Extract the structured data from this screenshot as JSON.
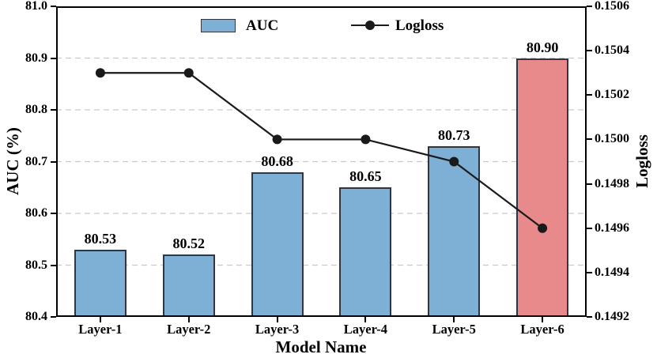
{
  "chart_data": {
    "type": "bar+line",
    "categories": [
      "Layer-1",
      "Layer-2",
      "Layer-3",
      "Layer-4",
      "Layer-5",
      "Layer-6"
    ],
    "series": [
      {
        "name": "AUC",
        "type": "bar",
        "axis": "left",
        "values": [
          80.53,
          80.52,
          80.68,
          80.65,
          80.73,
          80.9
        ],
        "labels": [
          "80.53",
          "80.52",
          "80.68",
          "80.65",
          "80.73",
          "80.90"
        ]
      },
      {
        "name": "Logloss",
        "type": "line",
        "axis": "right",
        "values": [
          0.1503,
          0.1503,
          0.15,
          0.15,
          0.1499,
          0.1496
        ]
      }
    ],
    "xlabel": "Model Name",
    "left_axis": {
      "label": "AUC (%)",
      "min": 80.4,
      "max": 81.0,
      "ticks": [
        "81.0",
        "80.9",
        "80.8",
        "80.7",
        "80.6",
        "80.5",
        "80.4"
      ]
    },
    "right_axis": {
      "label": "Logloss",
      "min": 0.1492,
      "max": 0.1506,
      "ticks": [
        "0.1506",
        "0.1504",
        "0.1502",
        "0.1500",
        "0.1498",
        "0.1496",
        "0.1494",
        "0.1492"
      ]
    },
    "gridlines": [
      80.9,
      80.8,
      80.7,
      80.6,
      80.5
    ],
    "legend": {
      "position": "top",
      "items": [
        {
          "label": "AUC",
          "marker": "bar"
        },
        {
          "label": "Logloss",
          "marker": "line-dot"
        }
      ]
    },
    "colors": {
      "bar_fill": [
        "#7EB0D5",
        "#7EB0D5",
        "#7EB0D5",
        "#7EB0D5",
        "#7EB0D5",
        "#E8898C"
      ],
      "bar_edge": "#2F3640",
      "line": "#1A1A1A",
      "grid": "#C9C9C9",
      "spine": "#000000"
    }
  }
}
